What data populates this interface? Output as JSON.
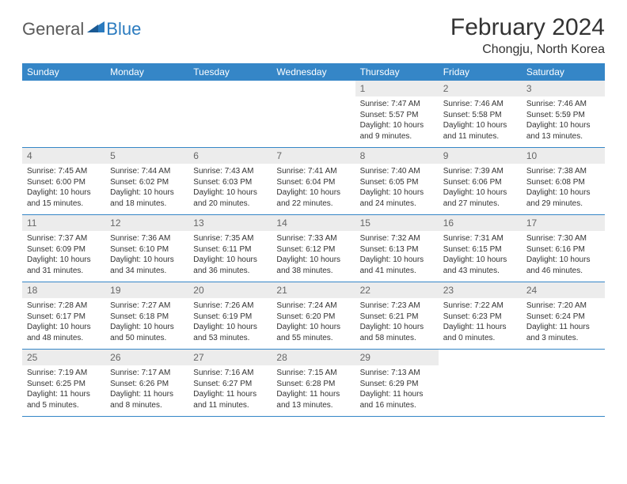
{
  "logo": {
    "general": "General",
    "blue": "Blue"
  },
  "title": "February 2024",
  "location": "Chongju, North Korea",
  "colors": {
    "header_bg": "#3586c7",
    "header_text": "#ffffff",
    "date_bg": "#ececec",
    "border": "#3586c7",
    "text": "#333333",
    "logo_gray": "#5a5a5a",
    "logo_blue": "#2b7bbf"
  },
  "dayNames": [
    "Sunday",
    "Monday",
    "Tuesday",
    "Wednesday",
    "Thursday",
    "Friday",
    "Saturday"
  ],
  "weeks": [
    [
      {
        "date": "",
        "lines": []
      },
      {
        "date": "",
        "lines": []
      },
      {
        "date": "",
        "lines": []
      },
      {
        "date": "",
        "lines": []
      },
      {
        "date": "1",
        "lines": [
          "Sunrise: 7:47 AM",
          "Sunset: 5:57 PM",
          "Daylight: 10 hours",
          "and 9 minutes."
        ]
      },
      {
        "date": "2",
        "lines": [
          "Sunrise: 7:46 AM",
          "Sunset: 5:58 PM",
          "Daylight: 10 hours",
          "and 11 minutes."
        ]
      },
      {
        "date": "3",
        "lines": [
          "Sunrise: 7:46 AM",
          "Sunset: 5:59 PM",
          "Daylight: 10 hours",
          "and 13 minutes."
        ]
      }
    ],
    [
      {
        "date": "4",
        "lines": [
          "Sunrise: 7:45 AM",
          "Sunset: 6:00 PM",
          "Daylight: 10 hours",
          "and 15 minutes."
        ]
      },
      {
        "date": "5",
        "lines": [
          "Sunrise: 7:44 AM",
          "Sunset: 6:02 PM",
          "Daylight: 10 hours",
          "and 18 minutes."
        ]
      },
      {
        "date": "6",
        "lines": [
          "Sunrise: 7:43 AM",
          "Sunset: 6:03 PM",
          "Daylight: 10 hours",
          "and 20 minutes."
        ]
      },
      {
        "date": "7",
        "lines": [
          "Sunrise: 7:41 AM",
          "Sunset: 6:04 PM",
          "Daylight: 10 hours",
          "and 22 minutes."
        ]
      },
      {
        "date": "8",
        "lines": [
          "Sunrise: 7:40 AM",
          "Sunset: 6:05 PM",
          "Daylight: 10 hours",
          "and 24 minutes."
        ]
      },
      {
        "date": "9",
        "lines": [
          "Sunrise: 7:39 AM",
          "Sunset: 6:06 PM",
          "Daylight: 10 hours",
          "and 27 minutes."
        ]
      },
      {
        "date": "10",
        "lines": [
          "Sunrise: 7:38 AM",
          "Sunset: 6:08 PM",
          "Daylight: 10 hours",
          "and 29 minutes."
        ]
      }
    ],
    [
      {
        "date": "11",
        "lines": [
          "Sunrise: 7:37 AM",
          "Sunset: 6:09 PM",
          "Daylight: 10 hours",
          "and 31 minutes."
        ]
      },
      {
        "date": "12",
        "lines": [
          "Sunrise: 7:36 AM",
          "Sunset: 6:10 PM",
          "Daylight: 10 hours",
          "and 34 minutes."
        ]
      },
      {
        "date": "13",
        "lines": [
          "Sunrise: 7:35 AM",
          "Sunset: 6:11 PM",
          "Daylight: 10 hours",
          "and 36 minutes."
        ]
      },
      {
        "date": "14",
        "lines": [
          "Sunrise: 7:33 AM",
          "Sunset: 6:12 PM",
          "Daylight: 10 hours",
          "and 38 minutes."
        ]
      },
      {
        "date": "15",
        "lines": [
          "Sunrise: 7:32 AM",
          "Sunset: 6:13 PM",
          "Daylight: 10 hours",
          "and 41 minutes."
        ]
      },
      {
        "date": "16",
        "lines": [
          "Sunrise: 7:31 AM",
          "Sunset: 6:15 PM",
          "Daylight: 10 hours",
          "and 43 minutes."
        ]
      },
      {
        "date": "17",
        "lines": [
          "Sunrise: 7:30 AM",
          "Sunset: 6:16 PM",
          "Daylight: 10 hours",
          "and 46 minutes."
        ]
      }
    ],
    [
      {
        "date": "18",
        "lines": [
          "Sunrise: 7:28 AM",
          "Sunset: 6:17 PM",
          "Daylight: 10 hours",
          "and 48 minutes."
        ]
      },
      {
        "date": "19",
        "lines": [
          "Sunrise: 7:27 AM",
          "Sunset: 6:18 PM",
          "Daylight: 10 hours",
          "and 50 minutes."
        ]
      },
      {
        "date": "20",
        "lines": [
          "Sunrise: 7:26 AM",
          "Sunset: 6:19 PM",
          "Daylight: 10 hours",
          "and 53 minutes."
        ]
      },
      {
        "date": "21",
        "lines": [
          "Sunrise: 7:24 AM",
          "Sunset: 6:20 PM",
          "Daylight: 10 hours",
          "and 55 minutes."
        ]
      },
      {
        "date": "22",
        "lines": [
          "Sunrise: 7:23 AM",
          "Sunset: 6:21 PM",
          "Daylight: 10 hours",
          "and 58 minutes."
        ]
      },
      {
        "date": "23",
        "lines": [
          "Sunrise: 7:22 AM",
          "Sunset: 6:23 PM",
          "Daylight: 11 hours",
          "and 0 minutes."
        ]
      },
      {
        "date": "24",
        "lines": [
          "Sunrise: 7:20 AM",
          "Sunset: 6:24 PM",
          "Daylight: 11 hours",
          "and 3 minutes."
        ]
      }
    ],
    [
      {
        "date": "25",
        "lines": [
          "Sunrise: 7:19 AM",
          "Sunset: 6:25 PM",
          "Daylight: 11 hours",
          "and 5 minutes."
        ]
      },
      {
        "date": "26",
        "lines": [
          "Sunrise: 7:17 AM",
          "Sunset: 6:26 PM",
          "Daylight: 11 hours",
          "and 8 minutes."
        ]
      },
      {
        "date": "27",
        "lines": [
          "Sunrise: 7:16 AM",
          "Sunset: 6:27 PM",
          "Daylight: 11 hours",
          "and 11 minutes."
        ]
      },
      {
        "date": "28",
        "lines": [
          "Sunrise: 7:15 AM",
          "Sunset: 6:28 PM",
          "Daylight: 11 hours",
          "and 13 minutes."
        ]
      },
      {
        "date": "29",
        "lines": [
          "Sunrise: 7:13 AM",
          "Sunset: 6:29 PM",
          "Daylight: 11 hours",
          "and 16 minutes."
        ]
      },
      {
        "date": "",
        "lines": []
      },
      {
        "date": "",
        "lines": []
      }
    ]
  ]
}
